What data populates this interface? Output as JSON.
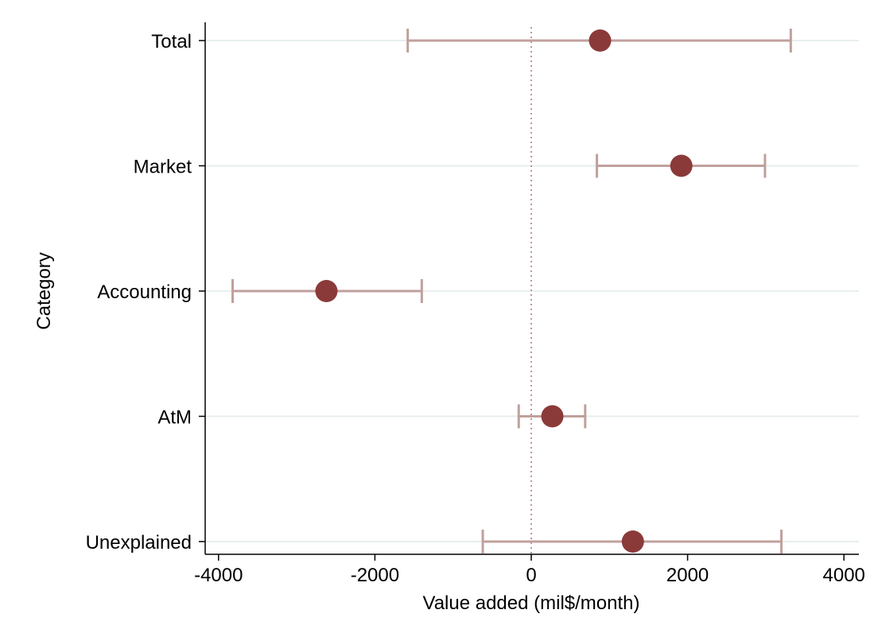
{
  "chart_data": {
    "type": "scatter",
    "title": "",
    "xlabel": "Value added (mil$/month)",
    "ylabel": "Category",
    "xlim": [
      -4200,
      4200
    ],
    "xticks": [
      -4000,
      -2000,
      0,
      2000,
      4000
    ],
    "xtick_labels": [
      "-4000",
      "-2000",
      "0",
      "2000",
      "4000"
    ],
    "grid": "horizontal",
    "reference_line": {
      "x": 0,
      "style": "dotted"
    },
    "categories": [
      "Total",
      "Market",
      "Accounting",
      "AtM",
      "Unexplained"
    ],
    "series": [
      {
        "estimates": [
          880,
          1920,
          -2620,
          270,
          1300
        ],
        "ci_low": [
          -1580,
          840,
          -3820,
          -160,
          -620
        ],
        "ci_high": [
          3320,
          2990,
          -1400,
          690,
          3200
        ]
      }
    ],
    "colors": {
      "point": "#8b3a3a",
      "ci": "#c0a09c",
      "grid": "#e8eeee",
      "ref_line": "#b07070",
      "axis": "#000000"
    }
  }
}
